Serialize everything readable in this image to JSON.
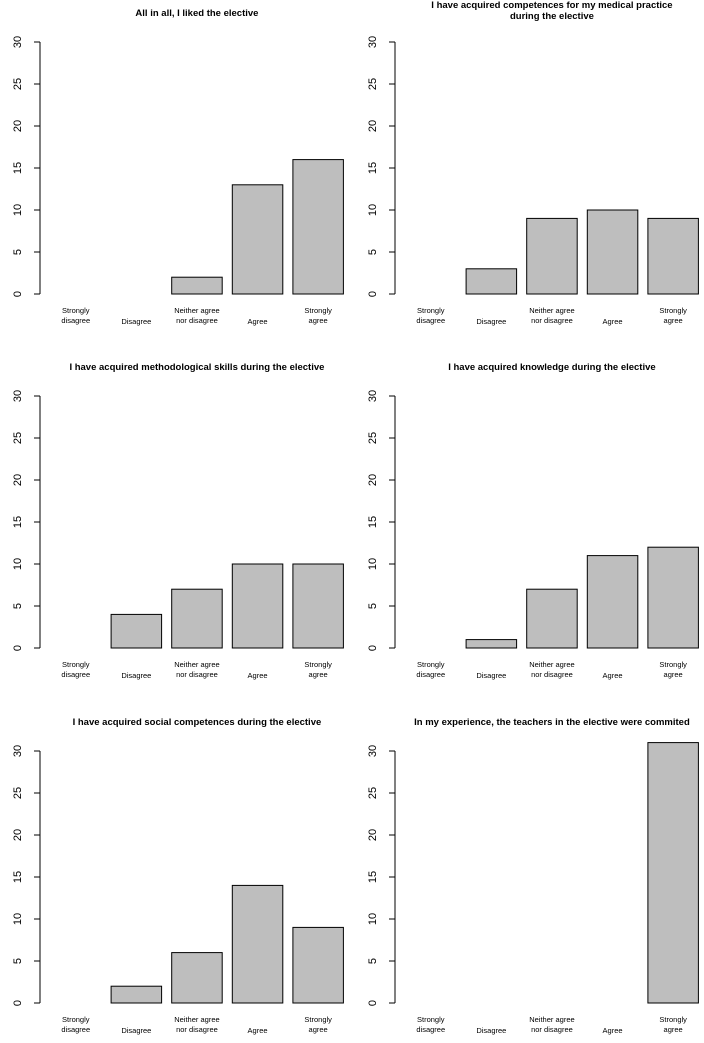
{
  "colors": {
    "bar_fill": "#bebebe",
    "bar_stroke": "#000000",
    "background": "#ffffff"
  },
  "chart_data": [
    {
      "type": "bar",
      "title": [
        "All in all, I liked the elective"
      ],
      "categories": [
        [
          "Strongly",
          "disagree"
        ],
        [
          "Disagree"
        ],
        [
          "Neither agree",
          "nor disagree"
        ],
        [
          "Agree"
        ],
        [
          "Strongly",
          "agree"
        ]
      ],
      "values": [
        0,
        0,
        2,
        13,
        16
      ],
      "ylim": [
        0,
        30
      ],
      "yticks": [
        "0",
        "5",
        "10",
        "15",
        "20",
        "25",
        "30"
      ],
      "grid": false
    },
    {
      "type": "bar",
      "title": [
        "I have acquired competences for my medical practice",
        "during the elective"
      ],
      "categories": [
        [
          "Strongly",
          "disagree"
        ],
        [
          "Disagree"
        ],
        [
          "Neither agree",
          "nor disagree"
        ],
        [
          "Agree"
        ],
        [
          "Strongly",
          "agree"
        ]
      ],
      "values": [
        0,
        3,
        9,
        10,
        9
      ],
      "ylim": [
        0,
        30
      ],
      "yticks": [
        "0",
        "5",
        "10",
        "15",
        "20",
        "25",
        "30"
      ],
      "grid": false
    },
    {
      "type": "bar",
      "title": [
        "I have acquired methodological skills during the elective"
      ],
      "categories": [
        [
          "Strongly",
          "disagree"
        ],
        [
          "Disagree"
        ],
        [
          "Neither agree",
          "nor disagree"
        ],
        [
          "Agree"
        ],
        [
          "Strongly",
          "agree"
        ]
      ],
      "values": [
        0,
        4,
        7,
        10,
        10
      ],
      "ylim": [
        0,
        30
      ],
      "yticks": [
        "0",
        "5",
        "10",
        "15",
        "20",
        "25",
        "30"
      ],
      "grid": false
    },
    {
      "type": "bar",
      "title": [
        "I have acquired knowledge during the elective"
      ],
      "categories": [
        [
          "Strongly",
          "disagree"
        ],
        [
          "Disagree"
        ],
        [
          "Neither agree",
          "nor disagree"
        ],
        [
          "Agree"
        ],
        [
          "Strongly",
          "agree"
        ]
      ],
      "values": [
        0,
        1,
        7,
        11,
        12
      ],
      "ylim": [
        0,
        30
      ],
      "yticks": [
        "0",
        "5",
        "10",
        "15",
        "20",
        "25",
        "30"
      ],
      "grid": false
    },
    {
      "type": "bar",
      "title": [
        "I have acquired social competences during the elective"
      ],
      "categories": [
        [
          "Strongly",
          "disagree"
        ],
        [
          "Disagree"
        ],
        [
          "Neither agree",
          "nor disagree"
        ],
        [
          "Agree"
        ],
        [
          "Strongly",
          "agree"
        ]
      ],
      "values": [
        0,
        2,
        6,
        14,
        9
      ],
      "ylim": [
        0,
        30
      ],
      "yticks": [
        "0",
        "5",
        "10",
        "15",
        "20",
        "25",
        "30"
      ],
      "grid": false
    },
    {
      "type": "bar",
      "title": [
        "In my experience, the teachers in the elective were commited"
      ],
      "categories": [
        [
          "Strongly",
          "disagree"
        ],
        [
          "Disagree"
        ],
        [
          "Neither agree",
          "nor disagree"
        ],
        [
          "Agree"
        ],
        [
          "Strongly",
          "agree"
        ]
      ],
      "values": [
        0,
        0,
        0,
        0,
        31
      ],
      "ylim": [
        0,
        30
      ],
      "yticks": [
        "0",
        "5",
        "10",
        "15",
        "20",
        "25",
        "30"
      ],
      "grid": false
    }
  ]
}
